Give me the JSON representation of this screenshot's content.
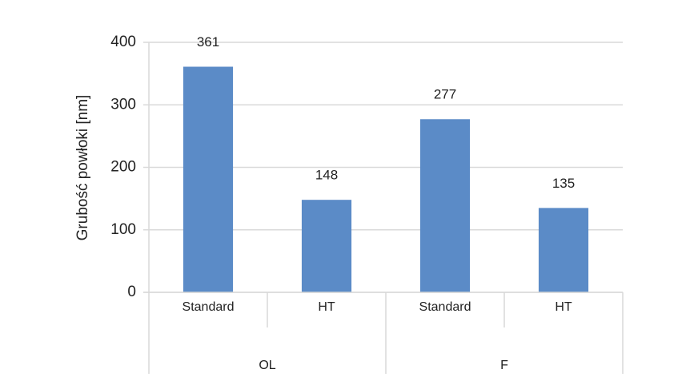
{
  "chart_data": {
    "type": "bar",
    "y_label": "Grubość powłoki [nm]",
    "groups": [
      {
        "name": "OL",
        "categories": [
          "Standard",
          "HT"
        ]
      },
      {
        "name": "F",
        "categories": [
          "Standard",
          "HT"
        ]
      }
    ],
    "values": [
      361,
      148,
      277,
      135
    ],
    "color": "#5b8bc7",
    "ylim": [
      0,
      400
    ],
    "yticks": [
      0,
      100,
      200,
      300,
      400
    ],
    "grid": true
  }
}
